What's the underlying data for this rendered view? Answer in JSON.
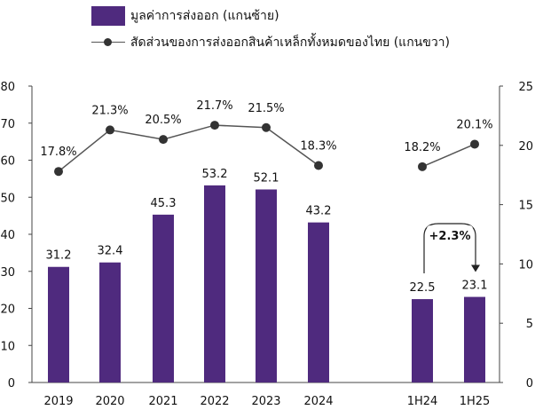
{
  "chart_data": {
    "type": "bar",
    "categories": [
      "2019",
      "2020",
      "2021",
      "2022",
      "2023",
      "2024",
      "1H24",
      "1H25"
    ],
    "series": [
      {
        "name": "มูลค่าการส่งออก (แกนซ้าย)",
        "kind": "bar",
        "axis": "left",
        "values": [
          31.2,
          32.4,
          45.3,
          53.2,
          52.1,
          43.2,
          22.5,
          23.1
        ],
        "value_labels": [
          "31.2",
          "32.4",
          "45.3",
          "53.2",
          "52.1",
          "43.2",
          "22.5",
          "23.1"
        ],
        "color": "#4f2a7e"
      },
      {
        "name": "สัดส่วนของการส่งออกสินค้าเหล็กทั้งหมดของไทย (แกนขวา)",
        "kind": "line",
        "axis": "right",
        "segments": [
          [
            0,
            1,
            2,
            3,
            4,
            5
          ],
          [
            6,
            7
          ]
        ],
        "values": [
          17.8,
          21.3,
          20.5,
          21.7,
          21.5,
          18.3,
          18.2,
          20.1
        ],
        "value_labels": [
          "17.8%",
          "21.3%",
          "20.5%",
          "21.7%",
          "21.5%",
          "18.3%",
          "18.2%",
          "20.1%"
        ],
        "color": "#333333"
      }
    ],
    "y_left": {
      "min": 0,
      "max": 80,
      "ticks": [
        "0",
        "10",
        "20",
        "30",
        "40",
        "50",
        "60",
        "70",
        "80"
      ]
    },
    "y_right": {
      "min": 0,
      "max": 25,
      "ticks": [
        "0",
        "5",
        "10",
        "15",
        "20",
        "25"
      ]
    },
    "annotation": {
      "text": "+2.3%",
      "from": "1H24",
      "to": "1H25"
    },
    "grid": false,
    "legend_position": "top"
  }
}
